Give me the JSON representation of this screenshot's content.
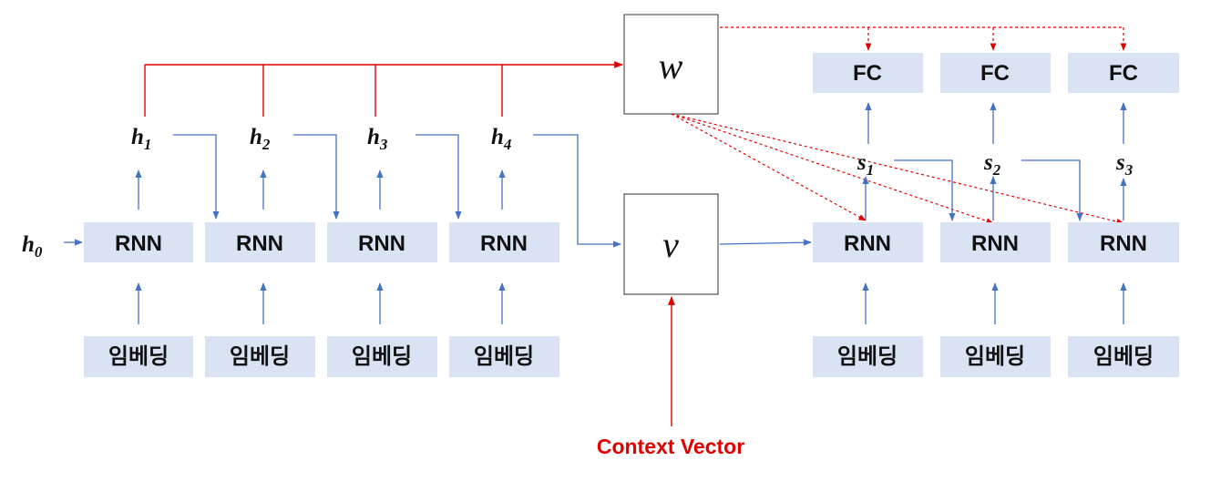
{
  "rnn_label": "RNN",
  "embed_label": "임베딩",
  "fc_label": "FC",
  "encoder_hidden": [
    {
      "sym": "h",
      "sub": "1"
    },
    {
      "sym": "h",
      "sub": "2"
    },
    {
      "sym": "h",
      "sub": "3"
    },
    {
      "sym": "h",
      "sub": "4"
    }
  ],
  "initial_hidden": {
    "sym": "h",
    "sub": "0"
  },
  "decoder_states": [
    {
      "sym": "s",
      "sub": "1"
    },
    {
      "sym": "s",
      "sub": "2"
    },
    {
      "sym": "s",
      "sub": "3"
    }
  ],
  "weight_symbol": "w",
  "context_symbol": "v",
  "context_caption": "Context Vector",
  "colors": {
    "box_fill": "#dae3f3",
    "blue_arrow": "#4472c4",
    "red": "#e00000",
    "text": "#111111"
  }
}
